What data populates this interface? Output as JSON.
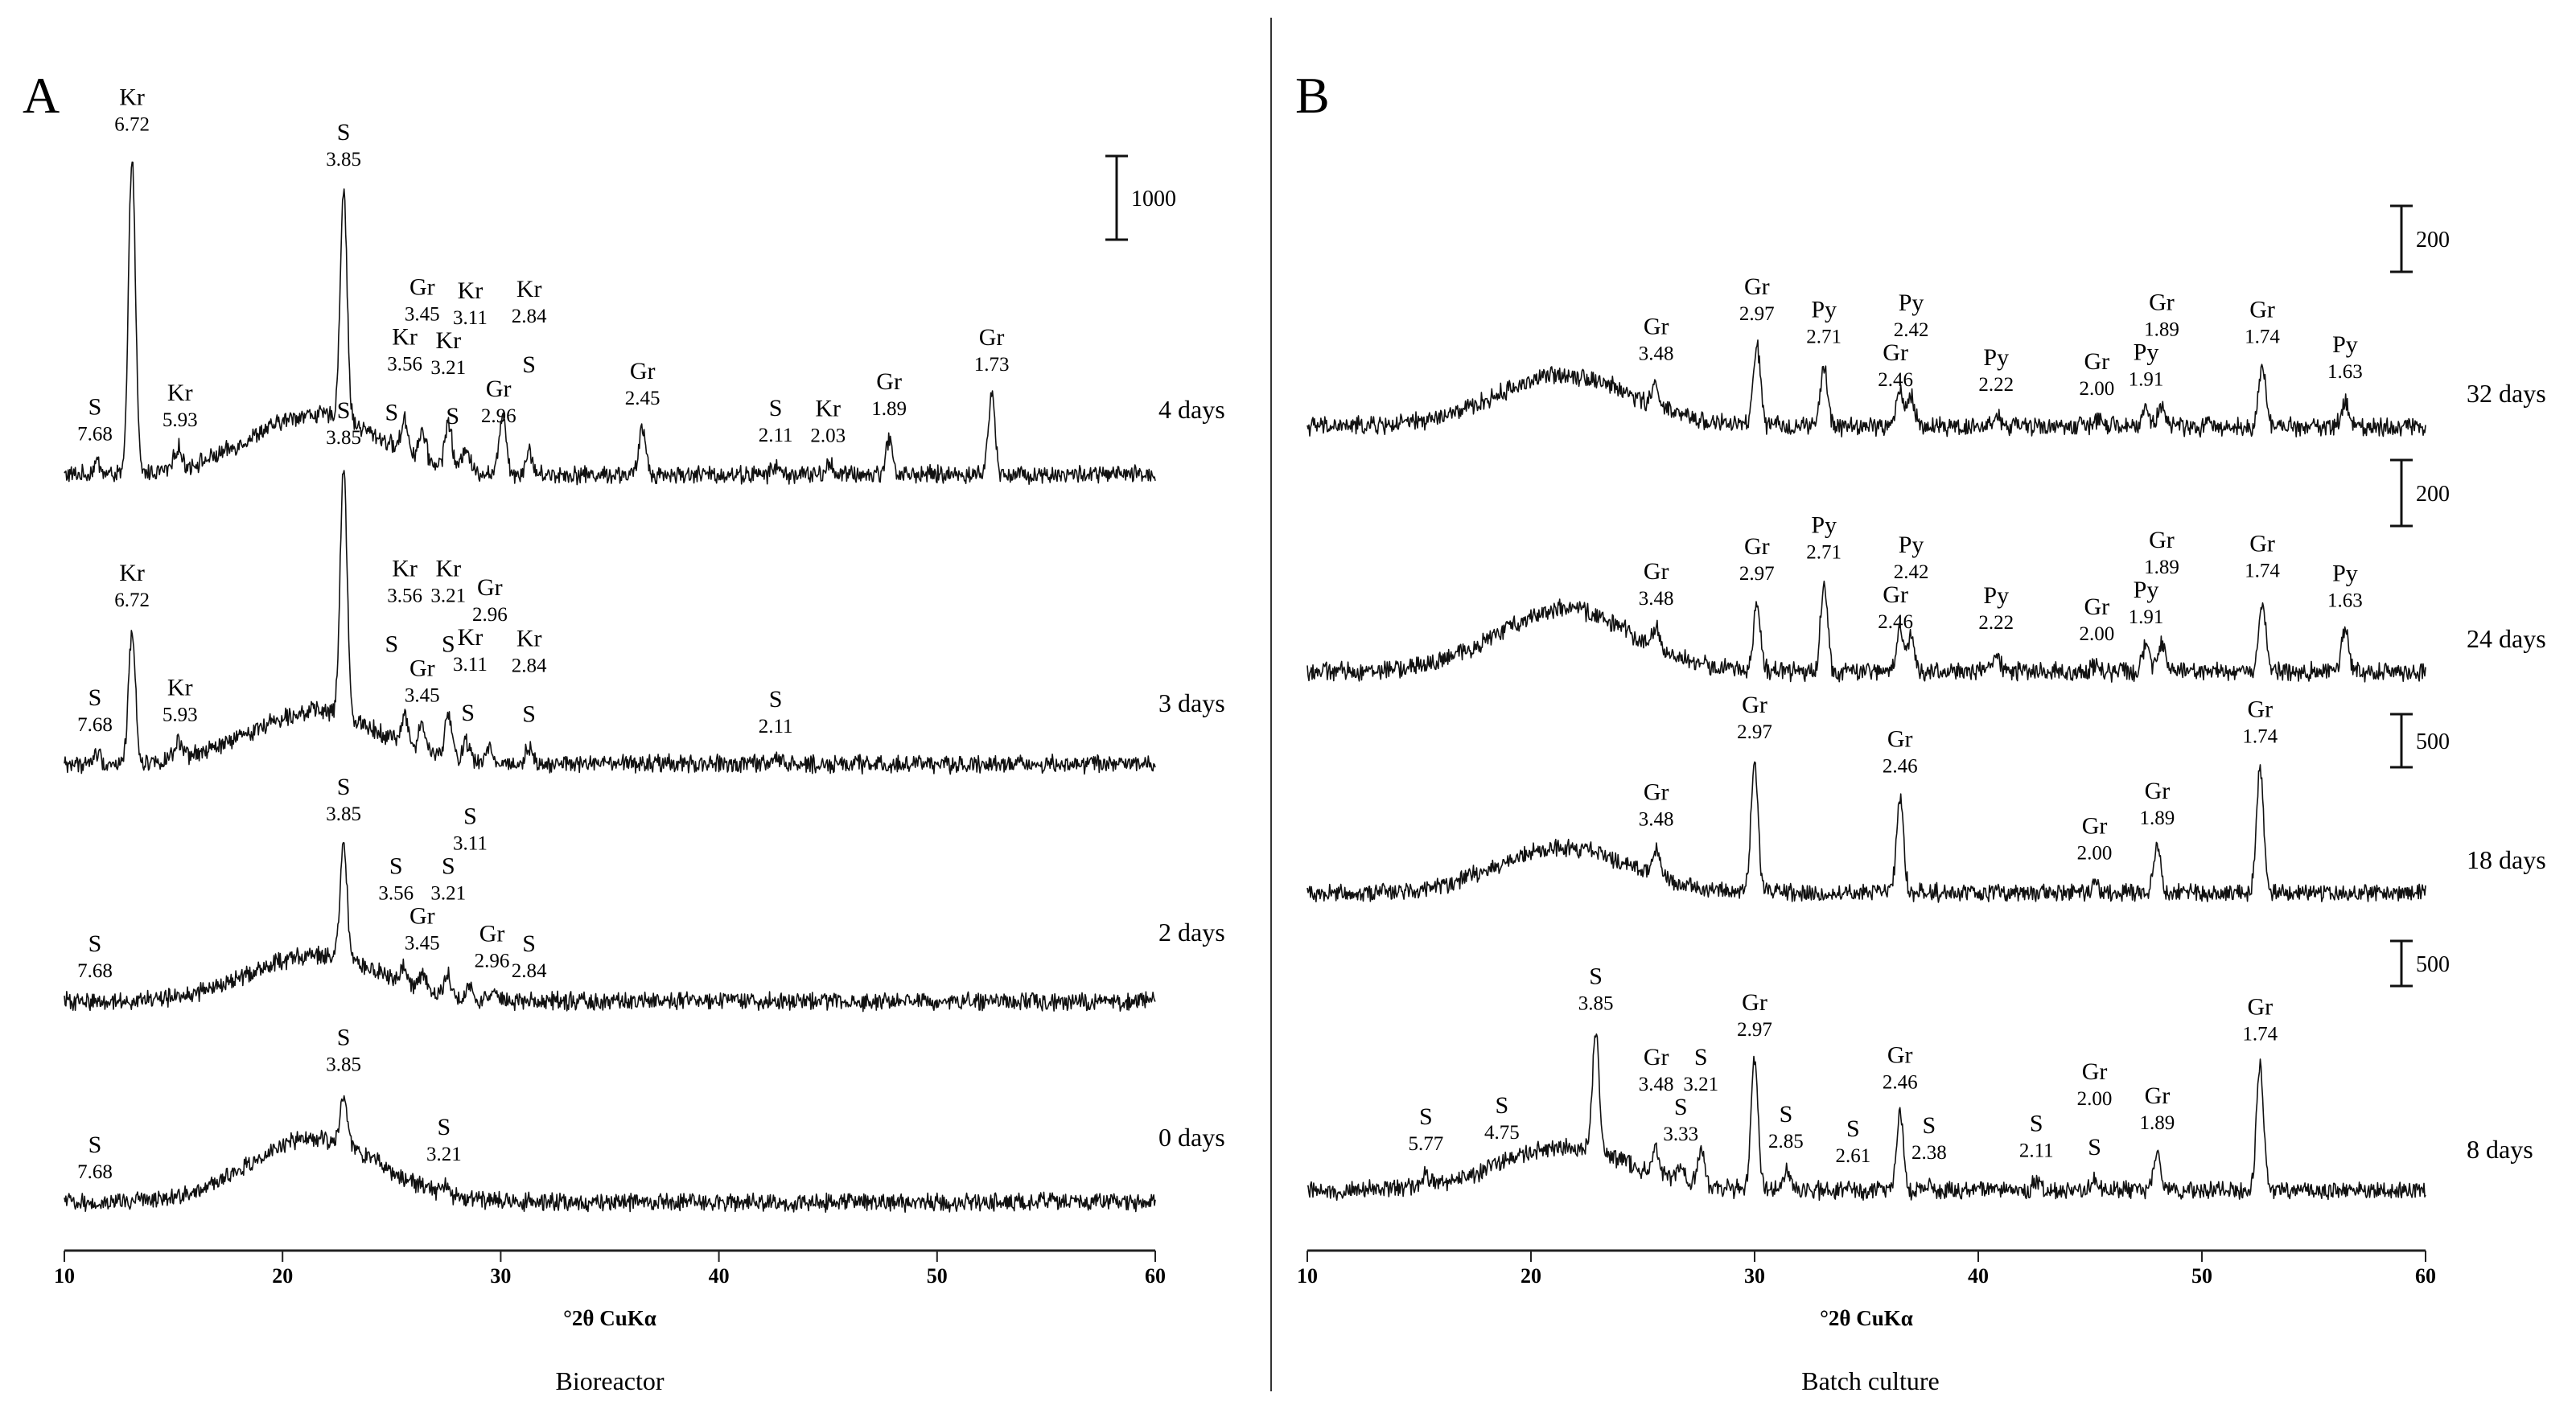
{
  "chart_data": [
    {
      "type": "line",
      "id": "A",
      "title": "A",
      "subtitle": "Bioreactor",
      "xlabel": "°2θ CuKα",
      "ylabel": "",
      "xlim": [
        10,
        60
      ],
      "xticks": [
        10,
        20,
        30,
        40,
        50,
        60
      ],
      "series": [
        {
          "name": "4 days",
          "noise": 0.42,
          "hump": 3.4,
          "scale_bar": "1000",
          "peaks": [
            [
              11.5,
              0.7
            ],
            [
              13.1,
              18
            ],
            [
              15.2,
              1.2
            ],
            [
              22.8,
              13
            ],
            [
              25.6,
              1.8
            ],
            [
              26.4,
              1.6
            ],
            [
              27.6,
              2.6
            ],
            [
              28.4,
              1.4
            ],
            [
              30.1,
              3.5
            ],
            [
              31.3,
              1.3
            ],
            [
              36.5,
              2.6
            ],
            [
              42.6,
              0.5
            ],
            [
              45.1,
              0.6
            ],
            [
              47.8,
              2.0
            ],
            [
              52.5,
              4.5
            ]
          ],
          "annotations": [
            {
              "mineral": "S",
              "d": "7.68",
              "x": 11.4
            },
            {
              "mineral": "Kr",
              "d": "6.72",
              "x": 13.1
            },
            {
              "mineral": "Kr",
              "d": "5.93",
              "x": 15.3
            },
            {
              "mineral": "S",
              "d": "3.85",
              "x": 22.8
            },
            {
              "mineral": "S",
              "d": "",
              "x": 25.0
            },
            {
              "mineral": "Kr",
              "d": "3.56",
              "x": 25.6
            },
            {
              "mineral": "Gr",
              "d": "3.45",
              "x": 26.4
            },
            {
              "mineral": "S",
              "d": "",
              "x": 27.8
            },
            {
              "mineral": "Kr",
              "d": "3.21",
              "x": 27.6
            },
            {
              "mineral": "Kr",
              "d": "3.11",
              "x": 28.6
            },
            {
              "mineral": "Gr",
              "d": "2.96",
              "x": 29.9
            },
            {
              "mineral": "S",
              "d": "",
              "x": 31.3
            },
            {
              "mineral": "Kr",
              "d": "2.84",
              "x": 31.3
            },
            {
              "mineral": "Gr",
              "d": "2.45",
              "x": 36.5
            },
            {
              "mineral": "S",
              "d": "2.11",
              "x": 42.6
            },
            {
              "mineral": "Kr",
              "d": "2.03",
              "x": 45.0
            },
            {
              "mineral": "Gr",
              "d": "1.89",
              "x": 47.8
            },
            {
              "mineral": "Gr",
              "d": "1.73",
              "x": 52.5
            }
          ]
        },
        {
          "name": "3 days",
          "noise": 0.42,
          "hump": 3.0,
          "peaks": [
            [
              11.5,
              0.6
            ],
            [
              13.1,
              7.5
            ],
            [
              15.2,
              0.9
            ],
            [
              22.8,
              14
            ],
            [
              25.6,
              1.6
            ],
            [
              26.4,
              1.4
            ],
            [
              27.6,
              2.4
            ],
            [
              28.4,
              1.1
            ],
            [
              29.5,
              0.8
            ],
            [
              31.3,
              1.0
            ],
            [
              42.6,
              0.4
            ]
          ],
          "annotations": [
            {
              "mineral": "S",
              "d": "3.85",
              "x": 22.8
            },
            {
              "mineral": "Gr",
              "d": "3.45",
              "x": 26.4
            },
            {
              "mineral": "S",
              "d": "",
              "x": 25.0
            },
            {
              "mineral": "Kr",
              "d": "3.56",
              "x": 25.6
            },
            {
              "mineral": "S",
              "d": "",
              "x": 27.6
            },
            {
              "mineral": "Kr",
              "d": "3.21",
              "x": 27.6
            },
            {
              "mineral": "S",
              "d": "",
              "x": 28.5
            },
            {
              "mineral": "Kr",
              "d": "3.11",
              "x": 28.6
            },
            {
              "mineral": "Gr",
              "d": "2.96",
              "x": 29.5
            },
            {
              "mineral": "S",
              "d": "",
              "x": 31.3
            },
            {
              "mineral": "Kr",
              "d": "2.84",
              "x": 31.3
            },
            {
              "mineral": "Kr",
              "d": "6.72",
              "x": 13.1
            },
            {
              "mineral": "S",
              "d": "7.68",
              "x": 11.4
            },
            {
              "mineral": "Kr",
              "d": "5.93",
              "x": 15.3
            },
            {
              "mineral": "S",
              "d": "2.11",
              "x": 42.6
            }
          ]
        },
        {
          "name": "2 days",
          "noise": 0.42,
          "hump": 2.6,
          "peaks": [
            [
              22.8,
              6.5
            ],
            [
              25.6,
              1.0
            ],
            [
              26.4,
              0.9
            ],
            [
              27.6,
              1.1
            ],
            [
              28.6,
              0.6
            ],
            [
              29.6,
              0.5
            ]
          ],
          "annotations": [
            {
              "mineral": "S",
              "d": "3.85",
              "x": 22.8
            },
            {
              "mineral": "Gr",
              "d": "3.45",
              "x": 26.4
            },
            {
              "mineral": "Gr",
              "d": "2.96",
              "x": 29.6
            },
            {
              "mineral": "S",
              "d": "7.68",
              "x": 11.4
            },
            {
              "mineral": "S",
              "d": "3.56",
              "x": 25.2
            },
            {
              "mineral": "S",
              "d": "3.21",
              "x": 27.6
            },
            {
              "mineral": "S",
              "d": "3.11",
              "x": 28.6
            },
            {
              "mineral": "S",
              "d": "2.84",
              "x": 31.3
            }
          ]
        },
        {
          "name": "0 days",
          "noise": 0.42,
          "hump": 3.6,
          "peaks": [
            [
              22.8,
              2.8
            ],
            [
              27.4,
              0.5
            ]
          ],
          "annotations": [
            {
              "mineral": "S",
              "d": "3.85",
              "x": 22.8
            },
            {
              "mineral": "S",
              "d": "3.21",
              "x": 27.4
            },
            {
              "mineral": "S",
              "d": "7.68",
              "x": 11.4
            }
          ]
        }
      ]
    },
    {
      "type": "line",
      "id": "B",
      "title": "B",
      "subtitle": "Batch culture",
      "xlabel": "°2θ CuKα",
      "ylabel": "",
      "xlim": [
        10,
        60
      ],
      "xticks": [
        10,
        20,
        30,
        40,
        50,
        60
      ],
      "series": [
        {
          "name": "32 days",
          "noise": 0.42,
          "hump": 2.8,
          "scale_bar": "200",
          "peaks": [
            [
              25.6,
              1.2
            ],
            [
              30.1,
              4.4
            ],
            [
              33.1,
              3.2
            ],
            [
              36.5,
              2.0
            ],
            [
              37.0,
              1.6
            ],
            [
              40.8,
              0.6
            ],
            [
              45.3,
              0.4
            ],
            [
              47.5,
              0.9
            ],
            [
              48.2,
              1.2
            ],
            [
              52.7,
              3.2
            ],
            [
              56.4,
              1.3
            ]
          ],
          "annotations": [
            {
              "mineral": "Gr",
              "d": "3.48",
              "x": 25.6
            },
            {
              "mineral": "Gr",
              "d": "2.97",
              "x": 30.1
            },
            {
              "mineral": "Py",
              "d": "2.71",
              "x": 33.1
            },
            {
              "mineral": "Gr",
              "d": "2.46",
              "x": 36.3
            },
            {
              "mineral": "Py",
              "d": "2.42",
              "x": 37.0
            },
            {
              "mineral": "Py",
              "d": "2.22",
              "x": 40.8
            },
            {
              "mineral": "Gr",
              "d": "2.00",
              "x": 45.3
            },
            {
              "mineral": "Py",
              "d": "1.91",
              "x": 47.5
            },
            {
              "mineral": "Gr",
              "d": "1.89",
              "x": 48.2
            },
            {
              "mineral": "Gr",
              "d": "1.74",
              "x": 52.7
            },
            {
              "mineral": "Py",
              "d": "1.63",
              "x": 56.4
            }
          ]
        },
        {
          "name": "24 days",
          "noise": 0.42,
          "hump": 3.4,
          "scale_bar": "200",
          "peaks": [
            [
              25.6,
              1.0
            ],
            [
              30.1,
              3.6
            ],
            [
              33.1,
              4.8
            ],
            [
              36.5,
              2.4
            ],
            [
              37.0,
              1.8
            ],
            [
              40.8,
              1.0
            ],
            [
              45.3,
              0.4
            ],
            [
              47.5,
              1.3
            ],
            [
              48.2,
              1.5
            ],
            [
              52.7,
              3.8
            ],
            [
              56.4,
              2.2
            ]
          ],
          "annotations": [
            {
              "mineral": "Gr",
              "d": "3.48",
              "x": 25.6
            },
            {
              "mineral": "Gr",
              "d": "2.97",
              "x": 30.1
            },
            {
              "mineral": "Py",
              "d": "2.71",
              "x": 33.1
            },
            {
              "mineral": "Gr",
              "d": "2.46",
              "x": 36.3
            },
            {
              "mineral": "Py",
              "d": "2.42",
              "x": 37.0
            },
            {
              "mineral": "Py",
              "d": "2.22",
              "x": 40.8
            },
            {
              "mineral": "Gr",
              "d": "2.00",
              "x": 45.3
            },
            {
              "mineral": "Py",
              "d": "1.91",
              "x": 47.5
            },
            {
              "mineral": "Gr",
              "d": "1.89",
              "x": 48.2
            },
            {
              "mineral": "Gr",
              "d": "1.74",
              "x": 52.7
            },
            {
              "mineral": "Py",
              "d": "1.63",
              "x": 56.4
            }
          ]
        },
        {
          "name": "18 days",
          "noise": 0.4,
          "hump": 2.4,
          "scale_bar": "500",
          "peaks": [
            [
              25.6,
              1.4
            ],
            [
              30.0,
              7.0
            ],
            [
              36.5,
              5.2
            ],
            [
              45.2,
              0.5
            ],
            [
              48.0,
              2.4
            ],
            [
              52.6,
              6.8
            ]
          ],
          "annotations": [
            {
              "mineral": "Gr",
              "d": "3.48",
              "x": 25.6
            },
            {
              "mineral": "Gr",
              "d": "2.97",
              "x": 30.0
            },
            {
              "mineral": "Gr",
              "d": "2.46",
              "x": 36.5
            },
            {
              "mineral": "Gr",
              "d": "2.00",
              "x": 45.2
            },
            {
              "mineral": "Gr",
              "d": "1.89",
              "x": 48.0
            },
            {
              "mineral": "Gr",
              "d": "1.74",
              "x": 52.6
            }
          ]
        },
        {
          "name": "8 days",
          "noise": 0.4,
          "hump": 2.3,
          "scale_bar": "500",
          "peaks": [
            [
              15.3,
              0.6
            ],
            [
              22.9,
              6.4
            ],
            [
              25.6,
              1.4
            ],
            [
              26.7,
              0.9
            ],
            [
              27.6,
              1.8
            ],
            [
              30.0,
              7.0
            ],
            [
              31.4,
              1.0
            ],
            [
              34.2,
              0.5
            ],
            [
              36.5,
              4.2
            ],
            [
              37.8,
              0.4
            ],
            [
              42.6,
              0.5
            ],
            [
              45.2,
              0.6
            ],
            [
              48.0,
              2.0
            ],
            [
              52.6,
              6.8
            ]
          ],
          "annotations": [
            {
              "mineral": "S",
              "d": "5.77",
              "x": 15.3
            },
            {
              "mineral": "S",
              "d": "4.75",
              "x": 18.7
            },
            {
              "mineral": "S",
              "d": "3.85",
              "x": 22.9
            },
            {
              "mineral": "S",
              "d": "3.33",
              "x": 26.7
            },
            {
              "mineral": "Gr",
              "d": "3.48",
              "x": 25.6
            },
            {
              "mineral": "S",
              "d": "3.21",
              "x": 27.6
            },
            {
              "mineral": "Gr",
              "d": "2.97",
              "x": 30.0
            },
            {
              "mineral": "S",
              "d": "2.85",
              "x": 31.4
            },
            {
              "mineral": "S",
              "d": "2.61",
              "x": 34.4
            },
            {
              "mineral": "Gr",
              "d": "2.46",
              "x": 36.5
            },
            {
              "mineral": "S",
              "d": "2.38",
              "x": 37.8
            },
            {
              "mineral": "S",
              "d": "2.11",
              "x": 42.6
            },
            {
              "mineral": "S",
              "d": "",
              "x": 45.2
            },
            {
              "mineral": "Gr",
              "d": "2.00",
              "x": 45.2
            },
            {
              "mineral": "Gr",
              "d": "1.89",
              "x": 48.0
            },
            {
              "mineral": "Gr",
              "d": "1.74",
              "x": 52.6
            }
          ]
        }
      ]
    }
  ]
}
